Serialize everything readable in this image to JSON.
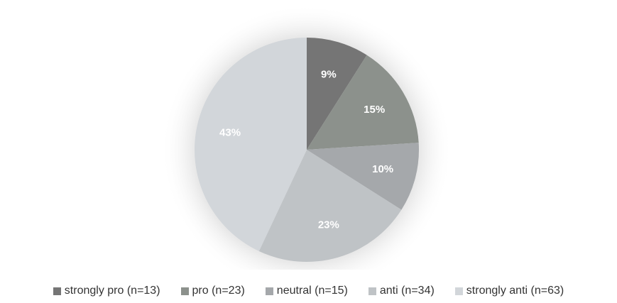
{
  "chart_data": {
    "type": "pie",
    "title": "",
    "legend_position": "bottom",
    "slices": [
      {
        "name": "strongly pro (n=13)",
        "value": 9,
        "label": "9%",
        "color": "#757575"
      },
      {
        "name": "pro (n=23)",
        "value": 15,
        "label": "15%",
        "color": "#8c918c"
      },
      {
        "name": "neutral (n=15)",
        "value": 10,
        "label": "10%",
        "color": "#a5a8ab"
      },
      {
        "name": "anti (n=34)",
        "value": 23,
        "label": "23%",
        "color": "#bfc3c6"
      },
      {
        "name": "strongly anti (n=63)",
        "value": 43,
        "label": "43%",
        "color": "#d2d6da"
      }
    ]
  }
}
